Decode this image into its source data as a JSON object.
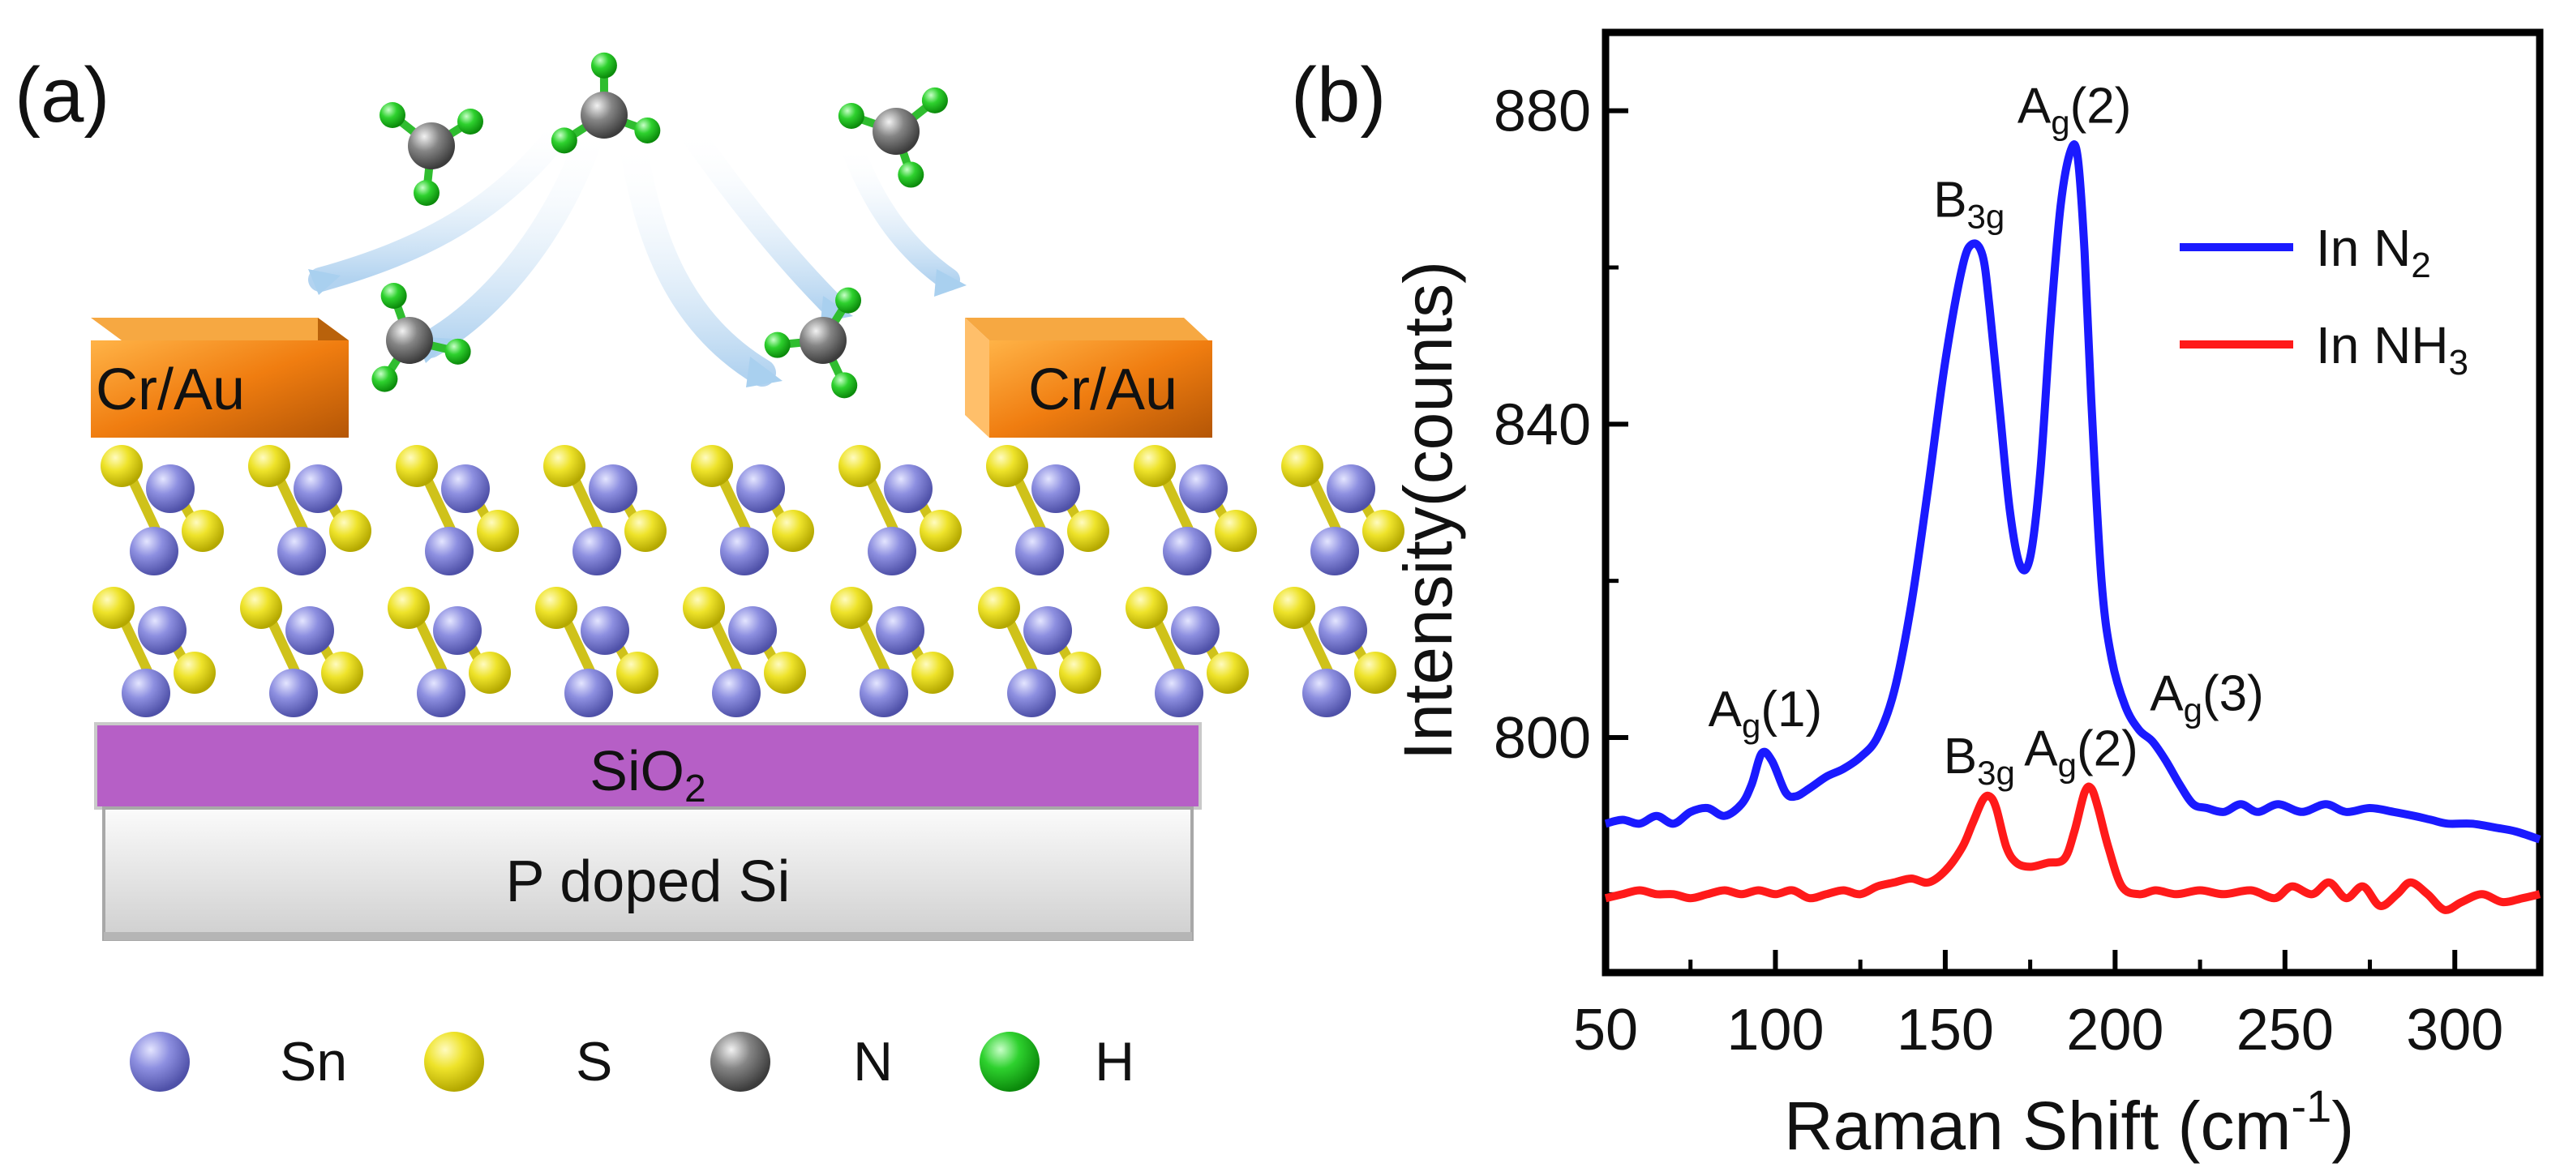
{
  "panel_a": {
    "label": "(a)",
    "electrode_label": "Cr/Au",
    "oxide_label": "SiO",
    "oxide_sub": "2",
    "substrate_label": "P doped Si",
    "legend": [
      {
        "symbol": "Sn",
        "color": "#7d7fd6"
      },
      {
        "symbol": "S",
        "color": "#e6e020"
      },
      {
        "symbol": "N",
        "color": "#777777"
      },
      {
        "symbol": "H",
        "color": "#22c322"
      }
    ]
  },
  "colors": {
    "n2": "#1a1aff",
    "nh3": "#ff1a1a",
    "oxide": "#b65fc6",
    "electrode": "#f08a14"
  },
  "chart_data": {
    "type": "line",
    "panel_label": "(b)",
    "title": "",
    "xlabel": "Raman Shift (cm",
    "xlabel_sup": "-1",
    "xlabel_end": ")",
    "ylabel": "Intensity(counts)",
    "xlim": [
      50,
      325
    ],
    "ylim": [
      770,
      890
    ],
    "xticks": [
      50,
      100,
      150,
      200,
      250,
      300
    ],
    "yticks": [
      800,
      840,
      880
    ],
    "legend_position": "top-right",
    "series": [
      {
        "name": "In N",
        "name_sub": "2",
        "color": "#1a1aff",
        "x": [
          50,
          55,
          60,
          65,
          70,
          75,
          80,
          85,
          90,
          93,
          96,
          99,
          103,
          106,
          110,
          115,
          120,
          125,
          130,
          135,
          140,
          145,
          150,
          155,
          158,
          161,
          163,
          166,
          169,
          172,
          175,
          178,
          181,
          184,
          187,
          189,
          191,
          193,
          196,
          199,
          203,
          207,
          211,
          215,
          219,
          223,
          227,
          232,
          237,
          242,
          248,
          255,
          262,
          268,
          275,
          282,
          288,
          293,
          298,
          305,
          312,
          318,
          325
        ],
        "y": [
          789,
          789.5,
          789,
          790,
          789,
          790.5,
          791,
          790,
          791.5,
          794,
          798,
          797,
          793,
          792.5,
          793.5,
          795,
          796,
          797.5,
          800,
          806,
          817,
          832,
          848,
          860,
          863,
          861.5,
          855,
          842,
          829,
          822,
          823,
          834,
          853,
          868,
          875,
          874,
          862,
          843,
          820,
          810,
          804,
          801,
          799.5,
          797,
          794,
          791.5,
          791,
          790.5,
          791.5,
          790.5,
          791.5,
          790.5,
          791.5,
          790.5,
          791,
          790.5,
          790,
          789.5,
          789,
          789,
          788.5,
          788,
          787
        ]
      },
      {
        "name": "In NH",
        "name_sub": "3",
        "color": "#ff1a1a",
        "x": [
          50,
          55,
          60,
          65,
          70,
          75,
          80,
          85,
          90,
          95,
          100,
          105,
          110,
          115,
          120,
          125,
          130,
          135,
          140,
          145,
          150,
          155,
          158,
          161,
          163,
          165,
          168,
          171,
          175,
          180,
          185,
          188,
          191,
          193,
          195,
          198,
          202,
          207,
          212,
          218,
          225,
          232,
          240,
          247,
          252,
          258,
          263,
          268,
          273,
          278,
          283,
          287,
          292,
          297,
          302,
          308,
          314,
          320,
          325
        ],
        "y": [
          779.5,
          780,
          780.5,
          780,
          780,
          779.5,
          780,
          780.5,
          780,
          780.5,
          780,
          780.5,
          779.5,
          780,
          780.5,
          780,
          781,
          781.5,
          782,
          781.5,
          783,
          786,
          789,
          792,
          792.5,
          791,
          786,
          784,
          783.5,
          784,
          784.5,
          788,
          793,
          793.5,
          791,
          786,
          781,
          780,
          780.5,
          780,
          780.5,
          780,
          780.5,
          779.5,
          781,
          780,
          781.5,
          779.5,
          781,
          778.5,
          780,
          781.5,
          780,
          778,
          779,
          780,
          779,
          779.5,
          780
        ]
      }
    ],
    "annotations": [
      {
        "text": "A",
        "sub": "g",
        "tail": "(1)",
        "x": 97,
        "y": 800
      },
      {
        "text": "B",
        "sub": "3g",
        "tail": "",
        "x": 157,
        "y": 865
      },
      {
        "text": "A",
        "sub": "g",
        "tail": "(2)",
        "x": 188,
        "y": 877
      },
      {
        "text": "A",
        "sub": "g",
        "tail": "(3)",
        "x": 227,
        "y": 802
      },
      {
        "text": "B",
        "sub": "3g",
        "tail": "",
        "x": 160,
        "y": 794
      },
      {
        "text": "A",
        "sub": "g",
        "tail": "(2)",
        "x": 190,
        "y": 795
      }
    ]
  }
}
